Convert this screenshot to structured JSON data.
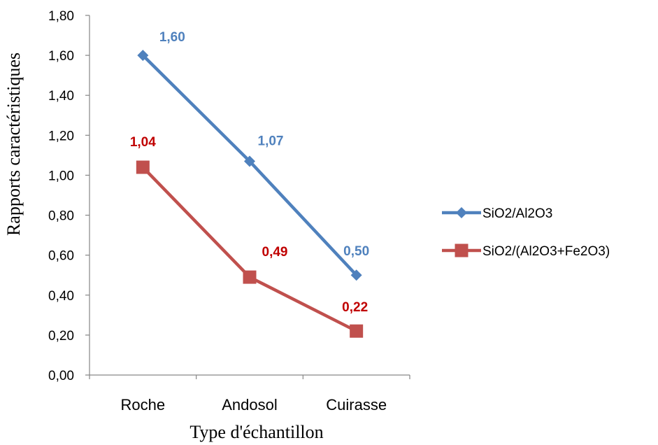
{
  "chart_data": {
    "type": "line",
    "categories": [
      "Roche",
      "Andosol",
      "Cuirasse"
    ],
    "series": [
      {
        "name": "SiO2/Al2O3",
        "values": [
          1.6,
          1.07,
          0.5
        ],
        "labels": [
          "1,60",
          "1,07",
          "0,50"
        ],
        "color": "#4F81BD",
        "label_color": "#4F81BD",
        "marker": "diamond"
      },
      {
        "name": "SiO2/(Al2O3+Fe2O3)",
        "values": [
          1.04,
          0.49,
          0.22
        ],
        "labels": [
          "1,04",
          "0,49",
          "0,22"
        ],
        "color": "#C0504D",
        "label_color": "#C00000",
        "marker": "square"
      }
    ],
    "xlabel": "Type d'échantillon",
    "ylabel": "Rapports caractéristiques",
    "ylim": [
      0,
      1.8
    ],
    "yticks": [
      0,
      0.2,
      0.4,
      0.6,
      0.8,
      1.0,
      1.2,
      1.4,
      1.6,
      1.8
    ],
    "ytick_labels": [
      "0,00",
      "0,20",
      "0,40",
      "0,60",
      "0,80",
      "1,00",
      "1,20",
      "1,40",
      "1,60",
      "1,80"
    ],
    "grid": false,
    "legend_position": "right"
  }
}
